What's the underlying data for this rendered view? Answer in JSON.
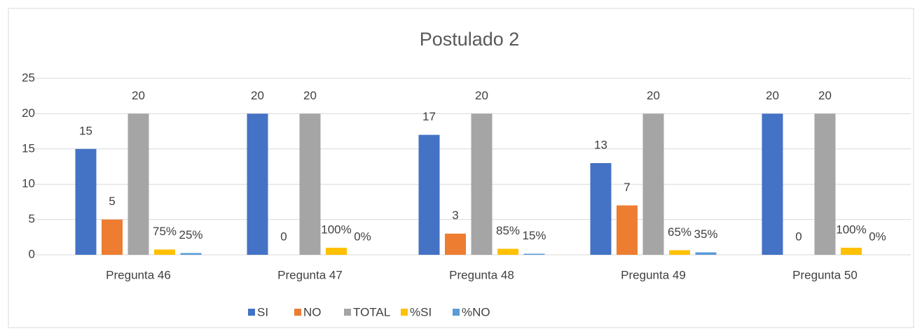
{
  "chart_data": {
    "type": "bar",
    "title": "Postulado 2",
    "categories": [
      "Pregunta 46",
      "Pregunta 47",
      "Pregunta 48",
      "Pregunta 49",
      "Pregunta 50"
    ],
    "series": [
      {
        "name": "SI",
        "color": "#4472c4",
        "values": [
          15,
          20,
          17,
          13,
          20
        ]
      },
      {
        "name": "NO",
        "color": "#ed7d31",
        "values": [
          5,
          0,
          3,
          7,
          0
        ]
      },
      {
        "name": "TOTAL",
        "color": "#a5a5a5",
        "values": [
          20,
          20,
          20,
          20,
          20
        ]
      },
      {
        "name": "%SI",
        "color": "#ffc000",
        "values": [
          0.75,
          1,
          0.85,
          0.65,
          1
        ],
        "value_labels": [
          "75%",
          "100%",
          "85%",
          "65%",
          "100%"
        ]
      },
      {
        "name": "%NO",
        "color": "#5b9bd5",
        "values": [
          0.25,
          0,
          0.15,
          0.35,
          0
        ],
        "value_labels": [
          "25%",
          "0%",
          "15%",
          "35%",
          "0%"
        ]
      }
    ],
    "ylim": [
      0,
      25
    ],
    "yticks": [
      0,
      5,
      10,
      15,
      20,
      25
    ],
    "grid": true,
    "legend": "bottom"
  }
}
